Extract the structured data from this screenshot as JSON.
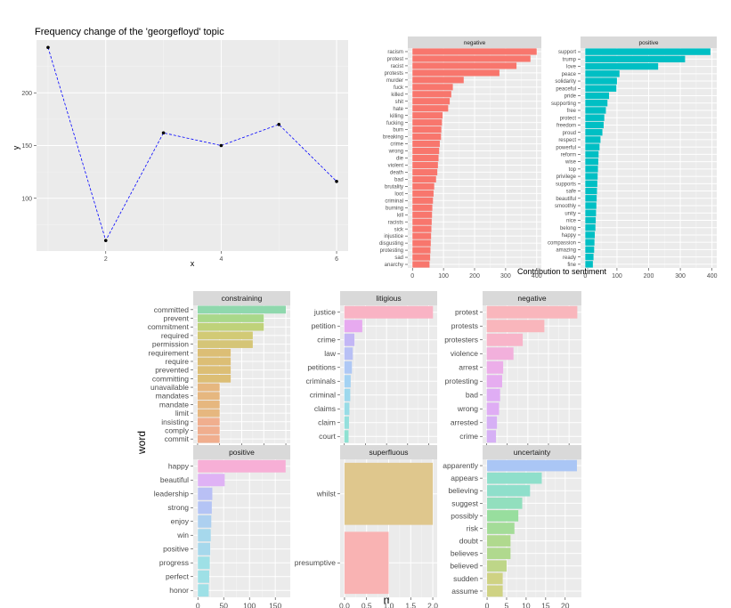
{
  "chart_data": [
    {
      "id": "line",
      "type": "line",
      "title": "Frequency change of the 'georgefloyd' topic",
      "xlabel": "x",
      "ylabel": "y",
      "x": [
        1,
        2,
        3,
        4,
        5,
        6
      ],
      "y": [
        243,
        60,
        162,
        150,
        170,
        116
      ],
      "xlim": [
        0.8,
        6.2
      ],
      "ylim": [
        50,
        250
      ],
      "xticks": [
        2,
        4,
        6
      ],
      "yticks": [
        100,
        150,
        200
      ],
      "line_color": "#0000ff",
      "point_color": "#000000"
    },
    {
      "id": "sentiment",
      "type": "bar",
      "orientation": "horizontal",
      "xlabel": "Contribution to sentiment",
      "xticks": [
        0,
        100,
        200,
        300,
        400
      ],
      "xlim": [
        -15,
        415
      ],
      "panels": [
        {
          "strip": "negative",
          "color": "#f8766d",
          "words": [
            "racism",
            "protest",
            "racist",
            "protests",
            "murder",
            "fuck",
            "killed",
            "shit",
            "hate",
            "killing",
            "fucking",
            "bum",
            "breaking",
            "crime",
            "wrong",
            "die",
            "violent",
            "death",
            "bad",
            "brutality",
            "loot",
            "criminal",
            "burning",
            "kill",
            "racists",
            "sick",
            "injustice",
            "disgusting",
            "protesting",
            "sad",
            "anarchy"
          ],
          "values": [
            400,
            380,
            335,
            280,
            165,
            130,
            125,
            120,
            115,
            97,
            95,
            93,
            92,
            88,
            86,
            84,
            82,
            80,
            76,
            70,
            68,
            66,
            64,
            63,
            62,
            61,
            60,
            59,
            58,
            57,
            55
          ]
        },
        {
          "strip": "positive",
          "color": "#00bfc4",
          "words": [
            "support",
            "trump",
            "love",
            "peace",
            "solidarity",
            "peaceful",
            "pride",
            "supporting",
            "free",
            "protect",
            "freedom",
            "proud",
            "respect",
            "powerful",
            "reform",
            "wise",
            "top",
            "privilege",
            "supports",
            "safe",
            "beautiful",
            "smoothly",
            "unity",
            "nice",
            "belong",
            "happy",
            "compassion",
            "amazing",
            "ready",
            "fine"
          ],
          "values": [
            395,
            315,
            230,
            108,
            100,
            98,
            75,
            70,
            65,
            60,
            58,
            54,
            48,
            45,
            42,
            41,
            40,
            39,
            38,
            37,
            36,
            35,
            34,
            33,
            32,
            30,
            29,
            28,
            26,
            24
          ]
        }
      ]
    },
    {
      "id": "loughran",
      "type": "bar",
      "orientation": "horizontal",
      "xlabel": "n",
      "ylabel": "word",
      "panels": [
        {
          "strip": "constraining",
          "xlim": [
            -0.4,
            8.4
          ],
          "xticks": [
            0,
            2,
            4,
            6,
            8
          ],
          "words": [
            "committed",
            "prevent",
            "commitment",
            "required",
            "permission",
            "requirement",
            "require",
            "prevented",
            "committing",
            "unavailable",
            "mandates",
            "mandate",
            "limit",
            "insisting",
            "comply",
            "commit"
          ],
          "values": [
            8,
            6,
            6,
            5,
            5,
            3,
            3,
            3,
            3,
            2,
            2,
            2,
            2,
            2,
            2,
            2
          ],
          "colors": [
            "#8fd8ad",
            "#a9d88a",
            "#bfd27a",
            "#d2ca75",
            "#d5c577",
            "#dcbe75",
            "#dcbe75",
            "#dcbe75",
            "#dcbe75",
            "#e6b77f",
            "#e6b77f",
            "#e6b77f",
            "#e6b77f",
            "#f0ae8e",
            "#f0ae8e",
            "#f0ae8e"
          ]
        },
        {
          "strip": "litigious",
          "xlim": [
            -20,
            440
          ],
          "xticks": [
            0,
            100,
            200,
            300,
            400
          ],
          "words": [
            "justice",
            "petition",
            "crime",
            "law",
            "petitions",
            "criminals",
            "criminal",
            "claims",
            "claim",
            "court"
          ],
          "values": [
            420,
            85,
            48,
            40,
            36,
            30,
            28,
            24,
            22,
            20
          ],
          "colors": [
            "#f9b3c4",
            "#e7aaf0",
            "#c3b6f5",
            "#b8c0f5",
            "#afc8f5",
            "#a4d2f3",
            "#9cd8ed",
            "#98dce6",
            "#94dfdc",
            "#8fe1d2"
          ]
        },
        {
          "strip": "negative",
          "xlim": [
            -20,
            460
          ],
          "xticks": [
            0,
            100,
            200,
            300,
            400
          ],
          "words": [
            "protest",
            "protests",
            "protesters",
            "violence",
            "arrest",
            "protesting",
            "bad",
            "wrong",
            "arrested",
            "crime"
          ],
          "values": [
            440,
            280,
            175,
            130,
            80,
            75,
            65,
            60,
            50,
            45
          ],
          "colors": [
            "#f9b6bc",
            "#f9b6bc",
            "#f8b4c9",
            "#f2b0dc",
            "#ecaee9",
            "#e6adf0",
            "#dfadf4",
            "#dfadf4",
            "#d6b0f5",
            "#d6b0f5"
          ]
        },
        {
          "strip": "positive",
          "xlim": [
            -9,
            179
          ],
          "xticks": [
            0,
            50,
            100,
            150
          ],
          "words": [
            "happy",
            "beautiful",
            "leadership",
            "strong",
            "enjoy",
            "win",
            "positive",
            "progress",
            "perfect",
            "honor"
          ],
          "values": [
            170,
            52,
            28,
            27,
            26,
            25,
            24,
            23,
            22,
            21
          ],
          "colors": [
            "#f7afd6",
            "#dfb2f5",
            "#b9c0f5",
            "#b4c4f5",
            "#add0f0",
            "#a6d8ec",
            "#a6d8ec",
            "#9ee0e6",
            "#9ee0e6",
            "#9ee0e6"
          ]
        },
        {
          "strip": "superfluous",
          "xlim": [
            -0.1,
            2.1
          ],
          "xticks": [
            0.0,
            0.5,
            1.0,
            1.5,
            2.0
          ],
          "words": [
            "whilst",
            "presumptive"
          ],
          "values": [
            2,
            1
          ],
          "colors": [
            "#dfc78d",
            "#f9b3b3"
          ]
        },
        {
          "strip": "uncertainty",
          "xlim": [
            -1.15,
            24.15
          ],
          "xticks": [
            0,
            5,
            10,
            15,
            20
          ],
          "words": [
            "apparently",
            "appears",
            "believing",
            "suggest",
            "possibly",
            "risk",
            "doubt",
            "believes",
            "believed",
            "sudden",
            "assume"
          ],
          "values": [
            23,
            14,
            11,
            9,
            8,
            7,
            6,
            6,
            5,
            4,
            4
          ],
          "colors": [
            "#aac6f5",
            "#8fdfcb",
            "#8fdfcb",
            "#92dfbe",
            "#98de9e",
            "#a4dc98",
            "#b0d98e",
            "#b0d98e",
            "#bed688",
            "#cfd283",
            "#cfd283"
          ]
        }
      ]
    }
  ]
}
